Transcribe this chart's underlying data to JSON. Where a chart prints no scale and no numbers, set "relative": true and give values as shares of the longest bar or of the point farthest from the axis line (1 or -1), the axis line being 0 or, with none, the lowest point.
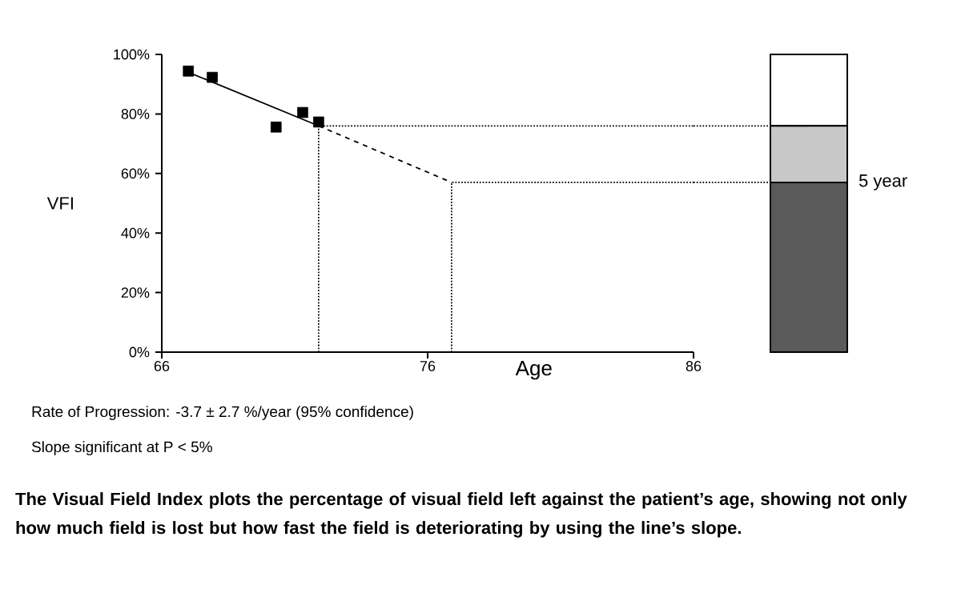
{
  "chart_data": [
    {
      "type": "scatter",
      "xlabel": "Age",
      "ylabel": "VFI",
      "xlim": [
        66,
        86
      ],
      "xticks": [
        66,
        76,
        86
      ],
      "ylim": [
        0,
        100
      ],
      "yticks": [
        {
          "value": 0,
          "label": "0%"
        },
        {
          "value": 20,
          "label": "20%"
        },
        {
          "value": 40,
          "label": "40%"
        },
        {
          "value": 60,
          "label": "60%"
        },
        {
          "value": 80,
          "label": "80%"
        },
        {
          "value": 100,
          "label": "100%"
        }
      ],
      "series": [
        {
          "type": "scatter",
          "color": "#000000",
          "marker": "square",
          "x": [
            67.0,
            67.9,
            70.3,
            71.3,
            71.9
          ],
          "values": [
            94.4,
            92.3,
            75.6,
            80.5,
            77.3
          ]
        },
        {
          "type": "line",
          "color": "#000000",
          "line_style": "solid",
          "x": [
            67.0,
            71.9
          ],
          "values": [
            94,
            76
          ]
        },
        {
          "type": "line",
          "color": "#000000",
          "line_style": "dashed",
          "x": [
            71.9,
            76.9
          ],
          "values": [
            76,
            57
          ]
        },
        {
          "type": "line",
          "color": "#000000",
          "line_style": "dotted",
          "x": [
            71.9,
            71.9,
            86
          ],
          "values": [
            0,
            76,
            76
          ]
        },
        {
          "type": "line",
          "color": "#000000",
          "line_style": "dotted",
          "x": [
            76.9,
            76.9,
            86
          ],
          "values": [
            0,
            57,
            57
          ]
        }
      ],
      "annotations": [
        "Rate of Progression: -3.7 ± 2.7 %/year (95% confidence)",
        "Slope significant at P < 5%",
        "**The Visual Field Index plots the percentage of visual field left against the patient’s age, showing not only how much field is lost but how fast the field is deteriorating by using the line’s slope.**"
      ]
    },
    {
      "type": "bar",
      "relative": true,
      "stacked": true,
      "categories": [
        null
      ],
      "series": [
        {
          "color": "#5a5a5a",
          "values": [
            0.57
          ]
        },
        {
          "color": "#c8c8c8",
          "values": [
            0.19
          ]
        },
        {
          "color": "#ffffff",
          "values": [
            0.24
          ]
        }
      ],
      "ref_lines": [
        {
          "axis": "y",
          "value": 0.76,
          "line_style": "dotted"
        },
        {
          "axis": "y",
          "value": 0.57,
          "line_style": "dotted",
          "label": "5 year"
        }
      ]
    }
  ]
}
